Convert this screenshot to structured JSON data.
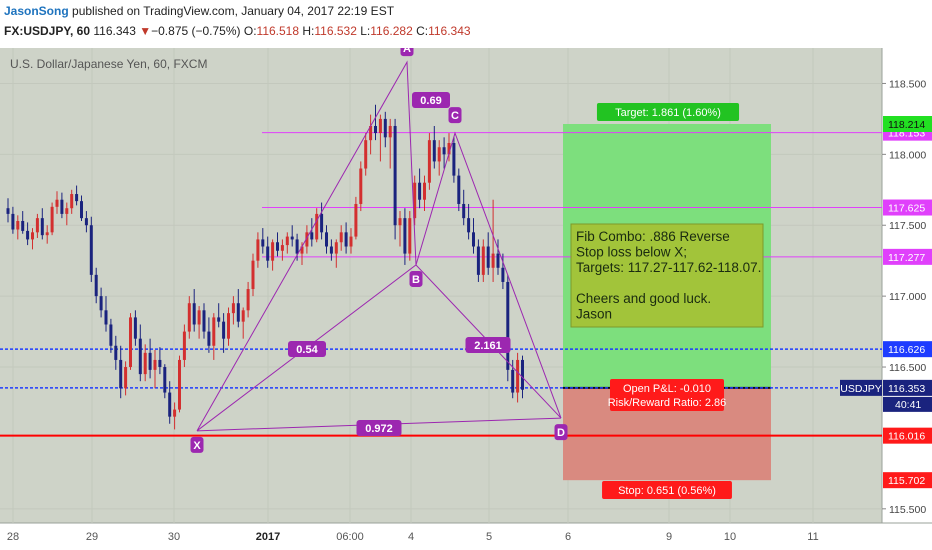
{
  "header": {
    "author": "JasonSong",
    "published": "published on TradingView.com, January 04, 2017 22:19 EST",
    "symbol": "FX:USDJPY, 60",
    "last": "116.343",
    "change_arrow": "▼",
    "change": "−0.875 (−0.75%)",
    "o_label": "O:",
    "o_value": "116.518",
    "h_label": "H:",
    "h_value": "116.532",
    "l_label": "L:",
    "l_value": "116.282",
    "c_label": "C:",
    "c_value": "116.343"
  },
  "chart_data": {
    "type": "candlestick",
    "title": "U.S. Dollar/Japanese Yen, 60, FXCM",
    "colors": {
      "up": "#d32f2f",
      "down": "#1a237e",
      "background": "#ced3c8",
      "pattern": "#9c27b0",
      "fib": "#e040fb",
      "support": "#1e3cff",
      "stop": "#ff0000"
    },
    "x_ticks": [
      "28",
      "29",
      "30",
      "2017",
      "06:00",
      "4",
      "5",
      "6",
      "9",
      "10",
      "11"
    ],
    "y_ticks": [
      "118.500",
      "118.000",
      "117.500",
      "117.000",
      "116.500",
      "115.500"
    ],
    "ylim": [
      115.4,
      118.75
    ],
    "fib_levels": [
      "118.153",
      "117.625",
      "117.277"
    ],
    "horizontal_levels": [
      {
        "label": "116.626",
        "color": "#1e3cff"
      },
      {
        "label": "116.016",
        "color": "#ff0000"
      },
      {
        "label": "115.702",
        "color": "#ff0000"
      }
    ],
    "target_price": "118.214",
    "current_price": "116.353",
    "current_symbol": "USDJPY",
    "countdown": "40:41",
    "pattern_points": {
      "X": {
        "label": "X",
        "price": 116.05
      },
      "A": {
        "label": "A",
        "price": 118.65
      },
      "B": {
        "label": "B",
        "price": 117.22
      },
      "C": {
        "label": "C",
        "price": 118.15
      },
      "D": {
        "label": "D",
        "price": 116.14
      }
    },
    "ratios": {
      "xab": "0.54",
      "abc": "0.69",
      "bcd": "2.161",
      "xad": "0.972"
    },
    "target_label": "Target: 1.861 (1.60%)",
    "stop_label": "Stop: 0.651 (0.56%)",
    "pnl_label": "Open P&L: -0.010",
    "rr_label": "Risk/Reward Ratio: 2.86",
    "note_lines": [
      "Fib Combo: .886 Reverse",
      "Stop loss below X;",
      "Targets: 117.27-117.62-118.07.",
      "",
      "Cheers and good luck.",
      "Jason"
    ],
    "candles": [
      [
        117.62,
        117.69,
        117.52,
        117.58
      ],
      [
        117.58,
        117.63,
        117.44,
        117.47
      ],
      [
        117.47,
        117.57,
        117.4,
        117.53
      ],
      [
        117.53,
        117.6,
        117.44,
        117.46
      ],
      [
        117.46,
        117.52,
        117.36,
        117.4
      ],
      [
        117.4,
        117.48,
        117.33,
        117.45
      ],
      [
        117.45,
        117.58,
        117.41,
        117.55
      ],
      [
        117.55,
        117.62,
        117.4,
        117.43
      ],
      [
        117.43,
        117.5,
        117.37,
        117.45
      ],
      [
        117.45,
        117.66,
        117.43,
        117.63
      ],
      [
        117.63,
        117.74,
        117.58,
        117.68
      ],
      [
        117.68,
        117.73,
        117.55,
        117.58
      ],
      [
        117.58,
        117.66,
        117.5,
        117.62
      ],
      [
        117.62,
        117.75,
        117.58,
        117.72
      ],
      [
        117.72,
        117.78,
        117.64,
        117.67
      ],
      [
        117.67,
        117.71,
        117.53,
        117.55
      ],
      [
        117.55,
        117.6,
        117.45,
        117.5
      ],
      [
        117.5,
        117.56,
        117.1,
        117.15
      ],
      [
        117.15,
        117.2,
        116.95,
        117.0
      ],
      [
        117.0,
        117.06,
        116.85,
        116.9
      ],
      [
        116.9,
        117.0,
        116.75,
        116.8
      ],
      [
        116.8,
        116.84,
        116.6,
        116.65
      ],
      [
        116.65,
        116.72,
        116.48,
        116.55
      ],
      [
        116.55,
        116.65,
        116.28,
        116.35
      ],
      [
        116.35,
        116.54,
        116.3,
        116.5
      ],
      [
        116.5,
        116.88,
        116.48,
        116.85
      ],
      [
        116.85,
        116.9,
        116.65,
        116.7
      ],
      [
        116.7,
        116.8,
        116.4,
        116.45
      ],
      [
        116.45,
        116.66,
        116.4,
        116.6
      ],
      [
        116.6,
        116.7,
        116.42,
        116.48
      ],
      [
        116.48,
        116.62,
        116.35,
        116.55
      ],
      [
        116.55,
        116.64,
        116.45,
        116.5
      ],
      [
        116.5,
        116.52,
        116.28,
        116.32
      ],
      [
        116.32,
        116.4,
        116.1,
        116.15
      ],
      [
        116.15,
        116.25,
        116.06,
        116.2
      ],
      [
        116.2,
        116.58,
        116.18,
        116.55
      ],
      [
        116.55,
        116.8,
        116.5,
        116.75
      ],
      [
        116.75,
        117.0,
        116.7,
        116.95
      ],
      [
        116.95,
        117.05,
        116.75,
        116.8
      ],
      [
        116.8,
        116.93,
        116.7,
        116.9
      ],
      [
        116.9,
        116.95,
        116.7,
        116.75
      ],
      [
        116.75,
        116.85,
        116.6,
        116.65
      ],
      [
        116.65,
        116.88,
        116.55,
        116.85
      ],
      [
        116.85,
        116.95,
        116.78,
        116.82
      ],
      [
        116.82,
        116.88,
        116.6,
        116.7
      ],
      [
        116.7,
        116.92,
        116.65,
        116.88
      ],
      [
        116.88,
        117.0,
        116.8,
        116.95
      ],
      [
        116.95,
        117.05,
        116.78,
        116.82
      ],
      [
        116.82,
        116.92,
        116.7,
        116.9
      ],
      [
        116.9,
        117.1,
        116.85,
        117.05
      ],
      [
        117.05,
        117.3,
        117.0,
        117.25
      ],
      [
        117.25,
        117.45,
        117.2,
        117.4
      ],
      [
        117.4,
        117.48,
        117.3,
        117.35
      ],
      [
        117.35,
        117.42,
        117.2,
        117.25
      ],
      [
        117.25,
        117.4,
        117.18,
        117.38
      ],
      [
        117.38,
        117.45,
        117.28,
        117.32
      ],
      [
        117.32,
        117.4,
        117.25,
        117.36
      ],
      [
        117.36,
        117.45,
        117.3,
        117.42
      ],
      [
        117.42,
        117.5,
        117.35,
        117.4
      ],
      [
        117.4,
        117.44,
        117.25,
        117.3
      ],
      [
        117.3,
        117.38,
        117.22,
        117.35
      ],
      [
        117.35,
        117.5,
        117.3,
        117.45
      ],
      [
        117.45,
        117.55,
        117.35,
        117.4
      ],
      [
        117.4,
        117.62,
        117.38,
        117.58
      ],
      [
        117.58,
        117.66,
        117.4,
        117.45
      ],
      [
        117.45,
        117.5,
        117.3,
        117.35
      ],
      [
        117.35,
        117.4,
        117.25,
        117.3
      ],
      [
        117.3,
        117.4,
        117.2,
        117.38
      ],
      [
        117.38,
        117.5,
        117.32,
        117.45
      ],
      [
        117.45,
        117.52,
        117.3,
        117.35
      ],
      [
        117.35,
        117.48,
        117.3,
        117.42
      ],
      [
        117.42,
        117.7,
        117.4,
        117.65
      ],
      [
        117.65,
        117.95,
        117.6,
        117.9
      ],
      [
        117.9,
        118.15,
        117.85,
        118.1
      ],
      [
        118.1,
        118.28,
        118.0,
        118.2
      ],
      [
        118.2,
        118.35,
        118.1,
        118.15
      ],
      [
        118.15,
        118.28,
        117.95,
        118.25
      ],
      [
        118.25,
        118.3,
        118.05,
        118.12
      ],
      [
        118.12,
        118.25,
        117.9,
        118.2
      ],
      [
        118.2,
        118.25,
        117.4,
        117.5
      ],
      [
        117.5,
        117.6,
        117.35,
        117.55
      ],
      [
        117.55,
        117.62,
        117.22,
        117.3
      ],
      [
        117.3,
        117.6,
        117.25,
        117.55
      ],
      [
        117.55,
        117.85,
        117.5,
        117.8
      ],
      [
        117.8,
        117.9,
        117.62,
        117.68
      ],
      [
        117.68,
        117.85,
        117.6,
        117.8
      ],
      [
        117.8,
        118.15,
        117.75,
        118.1
      ],
      [
        118.1,
        118.2,
        117.9,
        117.95
      ],
      [
        117.95,
        118.1,
        117.85,
        118.05
      ],
      [
        118.05,
        118.12,
        117.9,
        118.0
      ],
      [
        118.0,
        118.15,
        117.95,
        118.08
      ],
      [
        118.08,
        118.12,
        117.8,
        117.85
      ],
      [
        117.85,
        117.9,
        117.6,
        117.65
      ],
      [
        117.65,
        117.75,
        117.5,
        117.55
      ],
      [
        117.55,
        117.65,
        117.4,
        117.45
      ],
      [
        117.45,
        117.55,
        117.3,
        117.35
      ],
      [
        117.35,
        117.4,
        117.1,
        117.15
      ],
      [
        117.15,
        117.4,
        117.1,
        117.35
      ],
      [
        117.35,
        117.45,
        117.15,
        117.2
      ],
      [
        117.2,
        117.68,
        117.1,
        117.3
      ],
      [
        117.3,
        117.4,
        117.15,
        117.2
      ],
      [
        117.2,
        117.3,
        117.05,
        117.1
      ],
      [
        117.1,
        117.15,
        116.4,
        116.48
      ],
      [
        116.48,
        116.55,
        116.28,
        116.32
      ],
      [
        116.32,
        116.6,
        116.25,
        116.55
      ],
      [
        116.55,
        116.58,
        116.28,
        116.34
      ]
    ]
  }
}
